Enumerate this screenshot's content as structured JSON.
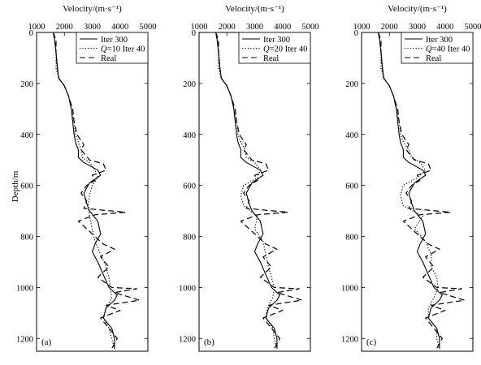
{
  "figure": {
    "ylabel": "Depth/m",
    "panel_labels": [
      "(a)",
      "(b)",
      "(c)"
    ]
  },
  "chart_data": [
    {
      "type": "line",
      "panel": "(a)",
      "xlabel": "Velocity/(m·s⁻¹)",
      "ylabel": "Depth/m",
      "xlim": [
        1000,
        5000
      ],
      "ylim": [
        1250,
        0
      ],
      "x_axis_position": "top",
      "y_inverted": true,
      "xticks": [
        1000,
        2000,
        3000,
        4000,
        5000
      ],
      "yticks": [
        0,
        200,
        400,
        600,
        800,
        1000,
        1200
      ],
      "legend_placement": "top-right",
      "legend": [
        "Iter 300",
        "Q=10 Iter 40",
        "Real"
      ],
      "series": [
        {
          "name": "Iter 300",
          "style": "solid",
          "depth": [
            0,
            30,
            80,
            140,
            180,
            210,
            250,
            300,
            350,
            400,
            430,
            460,
            490,
            510,
            540,
            560,
            590,
            630,
            670,
            700,
            740,
            790,
            830,
            860,
            900,
            950,
            1000,
            1030,
            1050,
            1080,
            1120,
            1160,
            1200,
            1240
          ],
          "velocity": [
            1600,
            1650,
            1700,
            1750,
            1800,
            2000,
            2150,
            2250,
            2300,
            2350,
            2400,
            2500,
            2500,
            2700,
            3200,
            3300,
            2900,
            2700,
            2800,
            2900,
            3200,
            3300,
            3100,
            3000,
            3200,
            3400,
            3600,
            3900,
            3800,
            3500,
            3400,
            3700,
            3800,
            3800
          ]
        },
        {
          "name": "Q=10 Iter 40",
          "style": "dotted",
          "depth": [
            0,
            30,
            80,
            140,
            180,
            210,
            250,
            300,
            350,
            400,
            430,
            460,
            490,
            510,
            540,
            570,
            600,
            640,
            680,
            720,
            770,
            820,
            870,
            920,
            960,
            1000,
            1040,
            1080,
            1120,
            1160,
            1200,
            1240
          ],
          "velocity": [
            1600,
            1650,
            1700,
            1700,
            1800,
            2000,
            2150,
            2250,
            2350,
            2400,
            2500,
            2600,
            2650,
            2900,
            3100,
            3200,
            3000,
            2900,
            2850,
            2900,
            3000,
            3100,
            3300,
            3500,
            3600,
            3650,
            3700,
            3500,
            3400,
            3600,
            3700,
            3800
          ]
        },
        {
          "name": "Real",
          "style": "dashed",
          "depth": [
            0,
            30,
            80,
            140,
            180,
            210,
            250,
            300,
            350,
            400,
            440,
            460,
            500,
            515,
            540,
            560,
            580,
            600,
            630,
            660,
            690,
            705,
            715,
            740,
            760,
            790,
            830,
            850,
            880,
            920,
            960,
            1000,
            1005,
            1020,
            1050,
            1070,
            1090,
            1120,
            1160,
            1200,
            1240
          ],
          "velocity": [
            1600,
            1700,
            1700,
            1750,
            1800,
            2000,
            2150,
            2300,
            2350,
            2450,
            2700,
            2600,
            2900,
            3400,
            3500,
            3000,
            3100,
            2800,
            2600,
            2800,
            2700,
            4200,
            3100,
            2500,
            2700,
            3000,
            3400,
            3800,
            3300,
            3600,
            3200,
            3700,
            4600,
            3800,
            4700,
            3500,
            4000,
            3300,
            3600,
            3900,
            3700
          ]
        }
      ]
    },
    {
      "type": "line",
      "panel": "(b)",
      "xlabel": "Velocity/(m·s⁻¹)",
      "xlim": [
        1000,
        5000
      ],
      "ylim": [
        1250,
        0
      ],
      "x_axis_position": "top",
      "y_inverted": true,
      "xticks": [
        1000,
        2000,
        3000,
        4000,
        5000
      ],
      "yticks": [
        0,
        200,
        400,
        600,
        800,
        1000,
        1200
      ],
      "legend_placement": "top-right",
      "legend": [
        "Iter 300",
        "Q=20 Iter 40",
        "Real"
      ],
      "series": [
        {
          "name": "Iter 300",
          "style": "solid",
          "depth": [
            0,
            30,
            80,
            140,
            180,
            210,
            250,
            300,
            350,
            400,
            430,
            460,
            490,
            510,
            540,
            560,
            590,
            630,
            670,
            700,
            740,
            790,
            830,
            860,
            900,
            950,
            1000,
            1030,
            1050,
            1080,
            1120,
            1160,
            1200,
            1240
          ],
          "velocity": [
            1600,
            1650,
            1700,
            1750,
            1800,
            2000,
            2150,
            2250,
            2300,
            2350,
            2400,
            2500,
            2500,
            2700,
            3200,
            3300,
            2900,
            2700,
            2800,
            2900,
            3200,
            3300,
            3100,
            3000,
            3200,
            3400,
            3600,
            3900,
            3800,
            3500,
            3400,
            3700,
            3800,
            3800
          ]
        },
        {
          "name": "Q=20 Iter 40",
          "style": "dotted",
          "depth": [
            0,
            30,
            80,
            140,
            180,
            210,
            250,
            300,
            350,
            400,
            430,
            460,
            490,
            510,
            540,
            570,
            600,
            640,
            680,
            720,
            770,
            820,
            870,
            920,
            960,
            1000,
            1040,
            1080,
            1120,
            1160,
            1200,
            1240
          ],
          "velocity": [
            1600,
            1650,
            1700,
            1700,
            1800,
            2000,
            2150,
            2250,
            2350,
            2400,
            2500,
            2650,
            2700,
            3000,
            3200,
            3100,
            2600,
            2500,
            2600,
            3100,
            3000,
            3300,
            3400,
            3500,
            3600,
            3700,
            3650,
            3450,
            3400,
            3650,
            3700,
            3800
          ]
        },
        {
          "name": "Real",
          "style": "dashed",
          "depth": [
            0,
            30,
            80,
            140,
            180,
            210,
            250,
            300,
            350,
            400,
            440,
            460,
            500,
            515,
            540,
            560,
            580,
            600,
            630,
            660,
            690,
            705,
            715,
            740,
            760,
            790,
            830,
            850,
            880,
            920,
            960,
            1000,
            1005,
            1020,
            1050,
            1070,
            1090,
            1120,
            1160,
            1200,
            1240
          ],
          "velocity": [
            1600,
            1700,
            1700,
            1750,
            1800,
            2000,
            2150,
            2300,
            2350,
            2450,
            2700,
            2600,
            2900,
            3400,
            3500,
            3000,
            3100,
            2800,
            2600,
            2800,
            2700,
            4200,
            3100,
            2500,
            2700,
            3000,
            3400,
            3800,
            3300,
            3600,
            3200,
            3700,
            4600,
            3800,
            4700,
            3500,
            4000,
            3300,
            3600,
            3900,
            3700
          ]
        }
      ]
    },
    {
      "type": "line",
      "panel": "(c)",
      "xlabel": "Velocity/(m·s⁻¹)",
      "xlim": [
        1000,
        5000
      ],
      "ylim": [
        1250,
        0
      ],
      "x_axis_position": "top",
      "y_inverted": true,
      "xticks": [
        1000,
        2000,
        3000,
        4000,
        5000
      ],
      "yticks": [
        0,
        200,
        400,
        600,
        800,
        1000,
        1200
      ],
      "legend_placement": "top-right",
      "legend": [
        "Iter 300",
        "Q=40 Iter 40",
        "Real"
      ],
      "series": [
        {
          "name": "Iter 300",
          "style": "solid",
          "depth": [
            0,
            30,
            80,
            140,
            180,
            210,
            250,
            300,
            350,
            400,
            430,
            460,
            490,
            510,
            540,
            560,
            590,
            630,
            670,
            700,
            740,
            790,
            830,
            860,
            900,
            950,
            1000,
            1030,
            1050,
            1080,
            1120,
            1160,
            1200,
            1240
          ],
          "velocity": [
            1600,
            1650,
            1700,
            1750,
            1800,
            2000,
            2150,
            2250,
            2300,
            2350,
            2400,
            2500,
            2500,
            2700,
            3200,
            3300,
            2900,
            2700,
            2800,
            2900,
            3200,
            3300,
            3100,
            3000,
            3200,
            3400,
            3600,
            3900,
            3800,
            3500,
            3400,
            3700,
            3800,
            3800
          ]
        },
        {
          "name": "Q=40 Iter 40",
          "style": "dotted",
          "depth": [
            0,
            30,
            80,
            140,
            180,
            210,
            250,
            300,
            350,
            400,
            430,
            460,
            490,
            510,
            540,
            570,
            600,
            640,
            680,
            720,
            770,
            820,
            870,
            920,
            960,
            1000,
            1040,
            1080,
            1120,
            1160,
            1200,
            1240
          ],
          "velocity": [
            1600,
            1650,
            1700,
            1700,
            1800,
            2000,
            2150,
            2250,
            2350,
            2400,
            2500,
            2700,
            2800,
            3100,
            3300,
            3000,
            2500,
            2400,
            2500,
            3200,
            2900,
            3300,
            3500,
            3500,
            3700,
            3750,
            3600,
            3400,
            3400,
            3700,
            3700,
            3800
          ]
        },
        {
          "name": "Real",
          "style": "dashed",
          "depth": [
            0,
            30,
            80,
            140,
            180,
            210,
            250,
            300,
            350,
            400,
            440,
            460,
            500,
            515,
            540,
            560,
            580,
            600,
            630,
            660,
            690,
            705,
            715,
            740,
            760,
            790,
            830,
            850,
            880,
            920,
            960,
            1000,
            1005,
            1020,
            1050,
            1070,
            1090,
            1120,
            1160,
            1200,
            1240
          ],
          "velocity": [
            1600,
            1700,
            1700,
            1750,
            1800,
            2000,
            2150,
            2300,
            2350,
            2450,
            2700,
            2600,
            2900,
            3400,
            3500,
            3000,
            3100,
            2800,
            2600,
            2800,
            2700,
            4200,
            3100,
            2500,
            2700,
            3000,
            3400,
            3800,
            3300,
            3600,
            3200,
            3700,
            4600,
            3800,
            4700,
            3500,
            4000,
            3300,
            3600,
            3900,
            3700
          ]
        }
      ]
    }
  ]
}
